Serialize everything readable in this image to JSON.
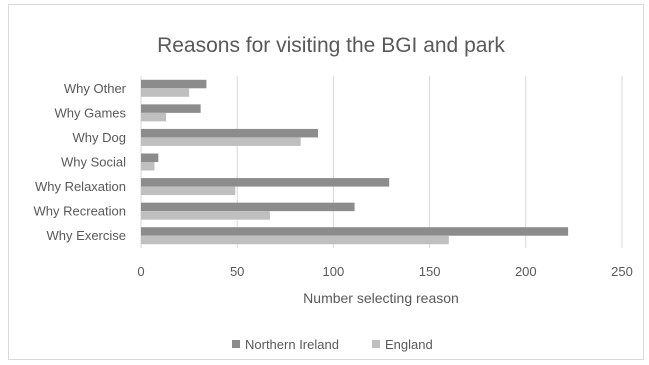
{
  "chart_data": {
    "type": "bar",
    "orientation": "horizontal",
    "title": "Reasons for visiting the BGI and park",
    "xlabel": "Number selecting reason",
    "ylabel": "",
    "categories": [
      "Why Exercise",
      "Why Recreation",
      "Why Relaxation",
      "Why Social",
      "Why Dog",
      "Why Games",
      "Why Other"
    ],
    "series": [
      {
        "name": "Northern Ireland",
        "color": "#8c8c8c",
        "values": [
          222,
          111,
          129,
          9,
          92,
          31,
          34
        ]
      },
      {
        "name": "England",
        "color": "#bfbfbf",
        "values": [
          160,
          67,
          49,
          7,
          83,
          13,
          25
        ]
      }
    ],
    "xlim": [
      0,
      250
    ],
    "xticks": [
      "0",
      "50",
      "100",
      "150",
      "200",
      "250"
    ],
    "grid": true,
    "legend_position": "bottom"
  }
}
